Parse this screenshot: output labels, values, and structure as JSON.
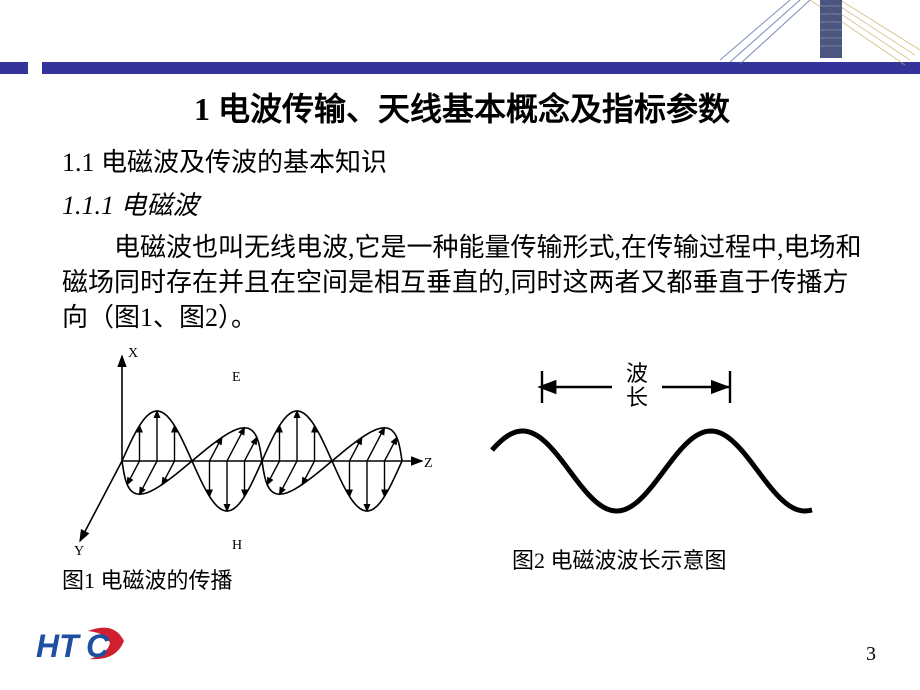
{
  "colors": {
    "header_bar": "#333399",
    "text": "#000000",
    "background": "#ffffff",
    "logo_blue": "#1e4fa0",
    "logo_red": "#d02030",
    "deco_line1": "#c9b06a",
    "deco_line2": "#5a6fa8",
    "deco_block": "#2b3a6b"
  },
  "title": "1 电波传输、天线基本概念及指标参数",
  "section": "1.1 电磁波及传波的基本知识",
  "subsection": "1.1.1 电磁波",
  "paragraph": "电磁波也叫无线电波,它是一种能量传输形式,在传输过程中,电场和磁场同时存在并且在空间是相互垂直的,同时这两者又都垂直于传播方向（图1、图2）。",
  "fig1": {
    "caption": "图1 电磁波的传播",
    "axis_labels": {
      "x": "X",
      "y": "Y",
      "z": "Z",
      "e": "E",
      "h": "H"
    },
    "style": {
      "stroke": "#000000",
      "stroke_width": 1.6,
      "arrow_stroke_width": 1.4,
      "font_size": 14
    },
    "sine": {
      "amplitude": 50,
      "length": 280,
      "periods": 2,
      "field_arrows_per_period": 8
    }
  },
  "fig2": {
    "caption": "图2 电磁波波长示意图",
    "label": "波长",
    "style": {
      "stroke": "#000000",
      "stroke_width": 5,
      "bracket_stroke_width": 2.4,
      "font_size": 22
    },
    "sine": {
      "amplitude": 40,
      "length": 320,
      "periods": 1.7
    }
  },
  "page_number": "3",
  "logo_text": "HTC"
}
